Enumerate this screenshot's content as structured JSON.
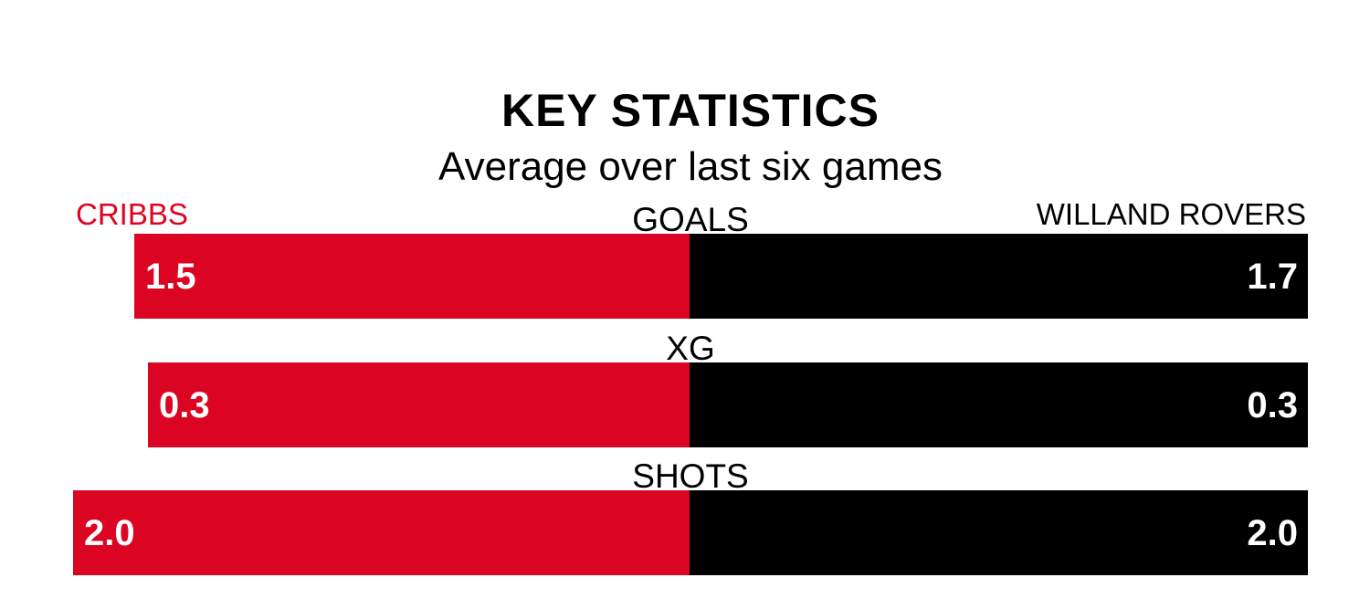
{
  "header": {
    "title": "KEY STATISTICS",
    "subtitle": "Average over last six games"
  },
  "teams": {
    "home": {
      "name": "CRIBBS",
      "color": "#dc0423"
    },
    "away": {
      "name": "WILLAND ROVERS",
      "color": "#000000"
    }
  },
  "stats": [
    {
      "label": "GOALS",
      "home_value": "1.5",
      "away_value": "1.7",
      "home_width": 608,
      "away_width": 677
    },
    {
      "label": "XG",
      "home_value": "0.3",
      "away_value": "0.3",
      "home_width": 593,
      "away_width": 677
    },
    {
      "label": "SHOTS",
      "home_value": "2.0",
      "away_value": "2.0",
      "home_width": 675,
      "away_width": 677
    }
  ],
  "chart_data": {
    "type": "bar",
    "orientation": "horizontal",
    "layout": "diverging-from-center",
    "categories": [
      "GOALS",
      "XG",
      "SHOTS"
    ],
    "series": [
      {
        "name": "CRIBBS",
        "color": "#dc0423",
        "values": [
          1.5,
          0.3,
          2.0
        ]
      },
      {
        "name": "WILLAND ROVERS",
        "color": "#000000",
        "values": [
          1.7,
          0.3,
          2.0
        ]
      }
    ],
    "title": "KEY STATISTICS",
    "subtitle": "Average over last six games",
    "value_labels": "inside-bar-ends",
    "legend_position": "top-corners",
    "background": "#ffffff"
  }
}
